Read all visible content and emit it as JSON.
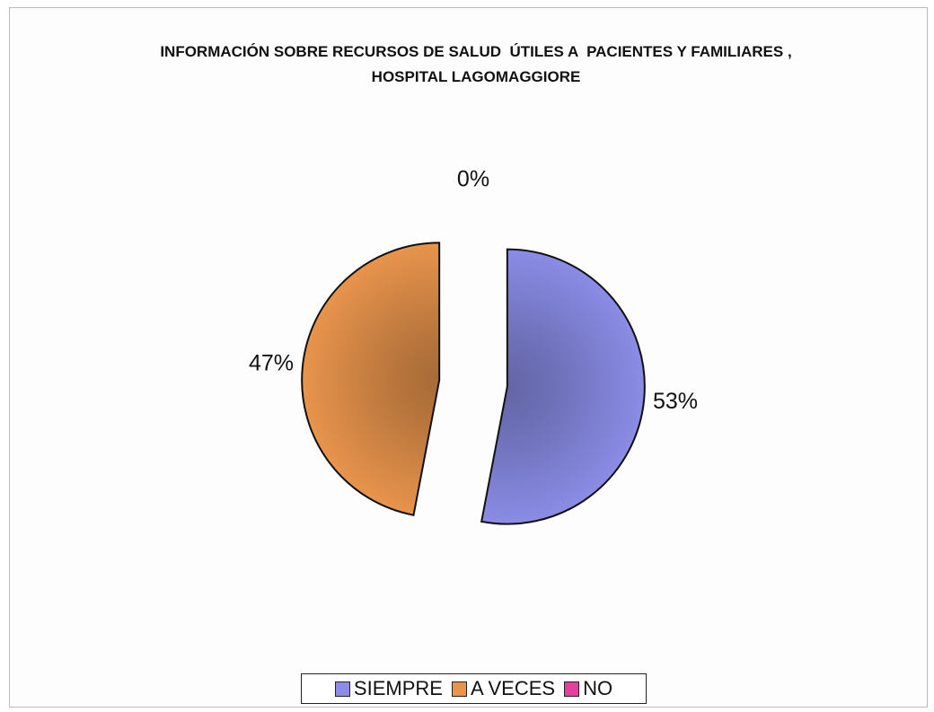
{
  "chart_data": {
    "type": "pie",
    "title": "INFORMACIÓN SOBRE RECURSOS DE SALUD  ÚTILES A  PACIENTES Y FAMILIARES , HOSPITAL LAGOMAGGIORE",
    "categories": [
      "SIEMPRE",
      "A VECES",
      "NO"
    ],
    "values": [
      53,
      47,
      0
    ],
    "value_labels": [
      "53%",
      "47%",
      "0%"
    ],
    "colors": [
      "#8a8ce6",
      "#e8944c",
      "#e2409a"
    ],
    "legend": "bottom"
  }
}
